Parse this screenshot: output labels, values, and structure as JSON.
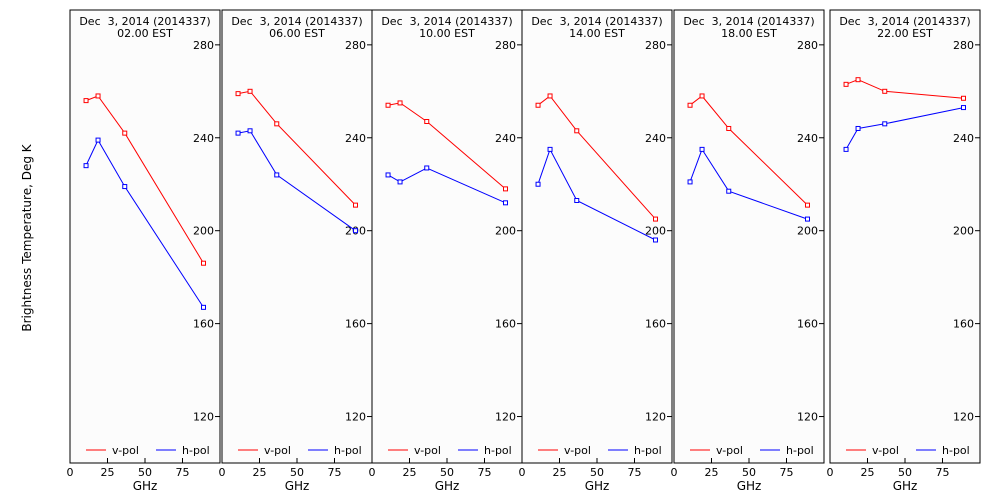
{
  "figure": {
    "ylabel": "Brightness Temperature, Deg K"
  },
  "chart_data": [
    {
      "type": "line",
      "title_line1": "Dec  3, 2014 (2014337)",
      "title_line2": "02.00 EST",
      "xlabel": "GHz",
      "xlim": [
        0,
        100
      ],
      "ylim": [
        100,
        295
      ],
      "xticks": [
        0,
        25,
        50,
        75
      ],
      "yticks": [
        120,
        160,
        200,
        240,
        280
      ],
      "grid": false,
      "legend_position": "bottom",
      "series": [
        {
          "name": "v-pol",
          "color": "#ff0000",
          "x": [
            10.7,
            18.7,
            36.5,
            89
          ],
          "y": [
            256,
            258,
            242,
            186
          ]
        },
        {
          "name": "h-pol",
          "color": "#0000ff",
          "x": [
            10.7,
            18.7,
            36.5,
            89
          ],
          "y": [
            228,
            239,
            219,
            167
          ]
        }
      ]
    },
    {
      "type": "line",
      "title_line1": "Dec  3, 2014 (2014337)",
      "title_line2": "06.00 EST",
      "xlabel": "GHz",
      "xlim": [
        0,
        100
      ],
      "ylim": [
        100,
        295
      ],
      "xticks": [
        0,
        25,
        50,
        75
      ],
      "yticks": [
        120,
        160,
        200,
        240,
        280
      ],
      "grid": false,
      "legend_position": "bottom",
      "series": [
        {
          "name": "v-pol",
          "color": "#ff0000",
          "x": [
            10.7,
            18.7,
            36.5,
            89
          ],
          "y": [
            259,
            260,
            246,
            211
          ]
        },
        {
          "name": "h-pol",
          "color": "#0000ff",
          "x": [
            10.7,
            18.7,
            36.5,
            89
          ],
          "y": [
            242,
            243,
            224,
            200
          ]
        }
      ]
    },
    {
      "type": "line",
      "title_line1": "Dec  3, 2014 (2014337)",
      "title_line2": "10.00 EST",
      "xlabel": "GHz",
      "xlim": [
        0,
        100
      ],
      "ylim": [
        100,
        295
      ],
      "xticks": [
        0,
        25,
        50,
        75
      ],
      "yticks": [
        120,
        160,
        200,
        240,
        280
      ],
      "grid": false,
      "legend_position": "bottom",
      "series": [
        {
          "name": "v-pol",
          "color": "#ff0000",
          "x": [
            10.7,
            18.7,
            36.5,
            89
          ],
          "y": [
            254,
            255,
            247,
            218
          ]
        },
        {
          "name": "h-pol",
          "color": "#0000ff",
          "x": [
            10.7,
            18.7,
            36.5,
            89
          ],
          "y": [
            224,
            221,
            227,
            212
          ]
        }
      ]
    },
    {
      "type": "line",
      "title_line1": "Dec  3, 2014 (2014337)",
      "title_line2": "14.00 EST",
      "xlabel": "GHz",
      "xlim": [
        0,
        100
      ],
      "ylim": [
        100,
        295
      ],
      "xticks": [
        0,
        25,
        50,
        75
      ],
      "yticks": [
        120,
        160,
        200,
        240,
        280
      ],
      "grid": false,
      "legend_position": "bottom",
      "series": [
        {
          "name": "v-pol",
          "color": "#ff0000",
          "x": [
            10.7,
            18.7,
            36.5,
            89
          ],
          "y": [
            254,
            258,
            243,
            205
          ]
        },
        {
          "name": "h-pol",
          "color": "#0000ff",
          "x": [
            10.7,
            18.7,
            36.5,
            89
          ],
          "y": [
            220,
            235,
            213,
            196
          ]
        }
      ]
    },
    {
      "type": "line",
      "title_line1": "Dec  3, 2014 (2014337)",
      "title_line2": "18.00 EST",
      "xlabel": "GHz",
      "xlim": [
        0,
        100
      ],
      "ylim": [
        100,
        295
      ],
      "xticks": [
        0,
        25,
        50,
        75
      ],
      "yticks": [
        120,
        160,
        200,
        240,
        280
      ],
      "grid": false,
      "legend_position": "bottom",
      "series": [
        {
          "name": "v-pol",
          "color": "#ff0000",
          "x": [
            10.7,
            18.7,
            36.5,
            89
          ],
          "y": [
            254,
            258,
            244,
            211
          ]
        },
        {
          "name": "h-pol",
          "color": "#0000ff",
          "x": [
            10.7,
            18.7,
            36.5,
            89
          ],
          "y": [
            221,
            235,
            217,
            205
          ]
        }
      ]
    },
    {
      "type": "line",
      "title_line1": "Dec  3, 2014 (2014337)",
      "title_line2": "22.00 EST",
      "xlabel": "GHz",
      "xlim": [
        0,
        100
      ],
      "ylim": [
        100,
        295
      ],
      "xticks": [
        0,
        25,
        50,
        75
      ],
      "yticks": [
        120,
        160,
        200,
        240,
        280
      ],
      "grid": false,
      "legend_position": "bottom",
      "series": [
        {
          "name": "v-pol",
          "color": "#ff0000",
          "x": [
            10.7,
            18.7,
            36.5,
            89
          ],
          "y": [
            263,
            265,
            260,
            257
          ]
        },
        {
          "name": "h-pol",
          "color": "#0000ff",
          "x": [
            10.7,
            18.7,
            36.5,
            89
          ],
          "y": [
            235,
            244,
            246,
            253
          ]
        }
      ]
    }
  ]
}
